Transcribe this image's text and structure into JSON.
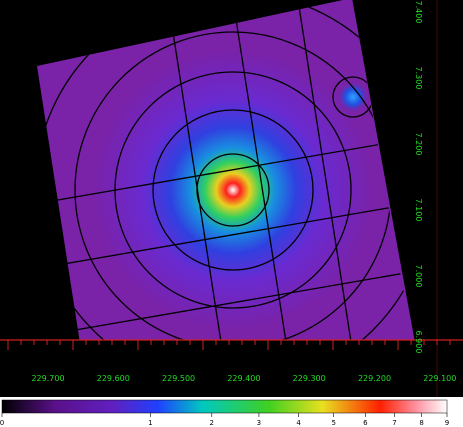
{
  "x_axis": {
    "labels": [
      "229.700",
      "229.600",
      "229.500",
      "229.400",
      "229.300",
      "229.200",
      "229.100"
    ]
  },
  "y_axis": {
    "labels": [
      "7.400",
      "7.300",
      "7.200",
      "7.100",
      "7.000",
      "6.900"
    ]
  },
  "colorbar": {
    "labels": [
      0,
      1,
      2,
      3,
      4,
      5,
      6,
      7,
      8,
      9
    ]
  }
}
